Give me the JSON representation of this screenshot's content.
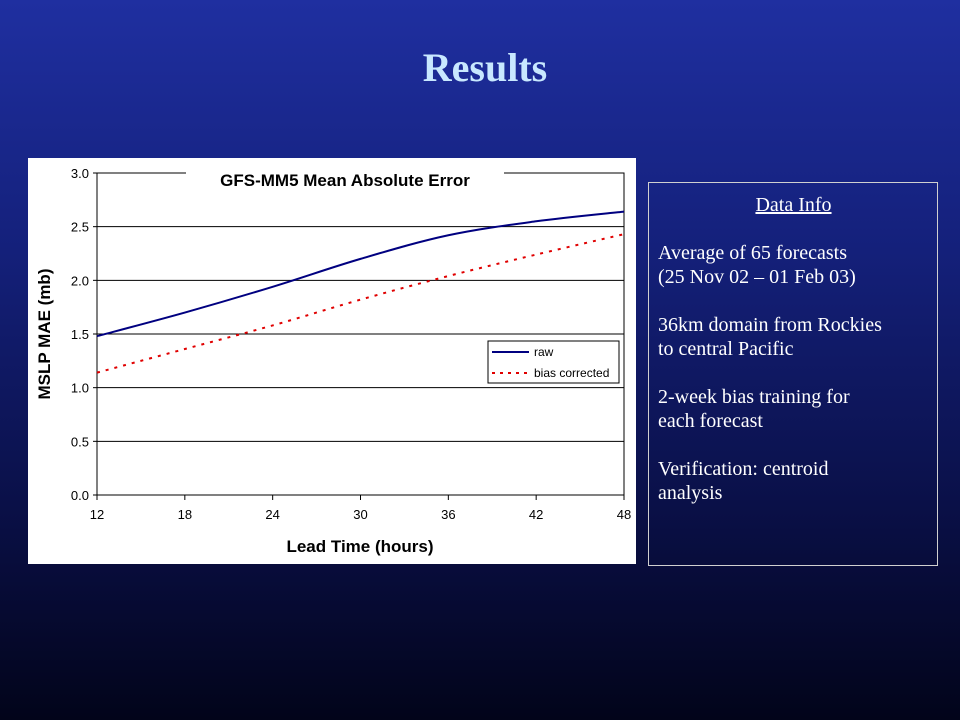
{
  "slide": {
    "title": "Results"
  },
  "info_box": {
    "heading": "Data Info",
    "lines": [
      "Average of 65 forecasts",
      "(25 Nov 02 – 01 Feb 03)",
      "36km domain from Rockies",
      "to central Pacific",
      "2-week bias training for",
      "each forecast",
      "Verification: centroid",
      "analysis"
    ]
  },
  "chart_data": {
    "type": "line",
    "title": "GFS-MM5 Mean Absolute Error",
    "xlabel": "Lead Time (hours)",
    "ylabel": "MSLP MAE (mb)",
    "xlim": [
      12,
      48
    ],
    "ylim": [
      0.0,
      3.0
    ],
    "xticks": [
      "12",
      "18",
      "24",
      "30",
      "36",
      "42",
      "48"
    ],
    "yticks": [
      "0.0",
      "0.5",
      "1.0",
      "1.5",
      "2.0",
      "2.5",
      "3.0"
    ],
    "grid": "horizontal",
    "legend": "right",
    "x": [
      12,
      18,
      24,
      30,
      36,
      42,
      48
    ],
    "series": [
      {
        "name": "raw",
        "color": "#000080",
        "style": "solid",
        "values": [
          1.48,
          1.7,
          1.94,
          2.2,
          2.42,
          2.55,
          2.64
        ]
      },
      {
        "name": "bias corrected",
        "color": "#e00000",
        "style": "dotted",
        "values": [
          1.14,
          1.36,
          1.58,
          1.82,
          2.04,
          2.24,
          2.43
        ]
      }
    ]
  }
}
